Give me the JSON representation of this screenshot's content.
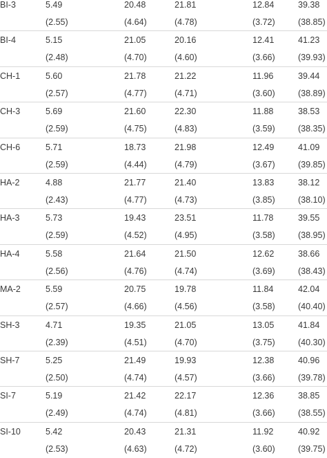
{
  "rows": [
    {
      "label": "BI-3",
      "values": [
        "5.49",
        "20.48",
        "21.81",
        "12.84",
        "39.38"
      ],
      "se": [
        "(2.55)",
        "(4.64)",
        "(4.78)",
        "(3.72)",
        "(38.85)"
      ]
    },
    {
      "label": "BI-4",
      "values": [
        "5.15",
        "21.05",
        "20.16",
        "12.41",
        "41.23"
      ],
      "se": [
        "(2.48)",
        "(4.70)",
        "(4.60)",
        "(3.66)",
        "(39.93)"
      ]
    },
    {
      "label": "CH-1",
      "values": [
        "5.60",
        "21.78",
        "21.22",
        "11.96",
        "39.44"
      ],
      "se": [
        "(2.57)",
        "(4.77)",
        "(4.71)",
        "(3.60)",
        "(38.89)"
      ]
    },
    {
      "label": "CH-3",
      "values": [
        "5.69",
        "21.60",
        "22.30",
        "11.88",
        "38.53"
      ],
      "se": [
        "(2.59)",
        "(4.75)",
        "(4.83)",
        "(3.59)",
        "(38.35)"
      ]
    },
    {
      "label": "CH-6",
      "values": [
        "5.71",
        "18.73",
        "21.98",
        "12.49",
        "41.09"
      ],
      "se": [
        "(2.59)",
        "(4.44)",
        "(4.79)",
        "(3.67)",
        "(39.85)"
      ]
    },
    {
      "label": "HA-2",
      "values": [
        "4.88",
        "21.77",
        "21.40",
        "13.83",
        "38.12"
      ],
      "se": [
        "(2.43)",
        "(4.77)",
        "(4.73)",
        "(3.85)",
        "(38.10)"
      ]
    },
    {
      "label": "HA-3",
      "values": [
        "5.73",
        "19.43",
        "23.51",
        "11.78",
        "39.55"
      ],
      "se": [
        "(2.59)",
        "(4.52)",
        "(4.95)",
        "(3.58)",
        "(38.95)"
      ]
    },
    {
      "label": "HA-4",
      "values": [
        "5.58",
        "21.64",
        "21.50",
        "12.62",
        "38.66"
      ],
      "se": [
        "(2.56)",
        "(4.76)",
        "(4.74)",
        "(3.69)",
        "(38.43)"
      ]
    },
    {
      "label": "MA-2",
      "values": [
        "5.59",
        "20.75",
        "19.78",
        "11.84",
        "42.04"
      ],
      "se": [
        "(2.57)",
        "(4.66)",
        "(4.56)",
        "(3.58)",
        "(40.40)"
      ]
    },
    {
      "label": "SH-3",
      "values": [
        "4.71",
        "19.35",
        "21.05",
        "13.05",
        "41.84"
      ],
      "se": [
        "(2.39)",
        "(4.51)",
        "(4.70)",
        "(3.75)",
        "(40.30)"
      ]
    },
    {
      "label": "SH-7",
      "values": [
        "5.25",
        "21.49",
        "19.93",
        "12.38",
        "40.96"
      ],
      "se": [
        "(2.50)",
        "(4.74)",
        "(4.57)",
        "(3.66)",
        "(39.78)"
      ]
    },
    {
      "label": "SI-7",
      "values": [
        "5.19",
        "21.42",
        "22.17",
        "12.36",
        "38.85"
      ],
      "se": [
        "(2.49)",
        "(4.74)",
        "(4.81)",
        "(3.66)",
        "(38.55)"
      ]
    },
    {
      "label": "SI-10",
      "values": [
        "5.42",
        "20.43",
        "21.31",
        "11.92",
        "40.92"
      ],
      "se": [
        "(2.53)",
        "(4.63)",
        "(4.72)",
        "(3.60)",
        "(39.75)"
      ]
    }
  ]
}
